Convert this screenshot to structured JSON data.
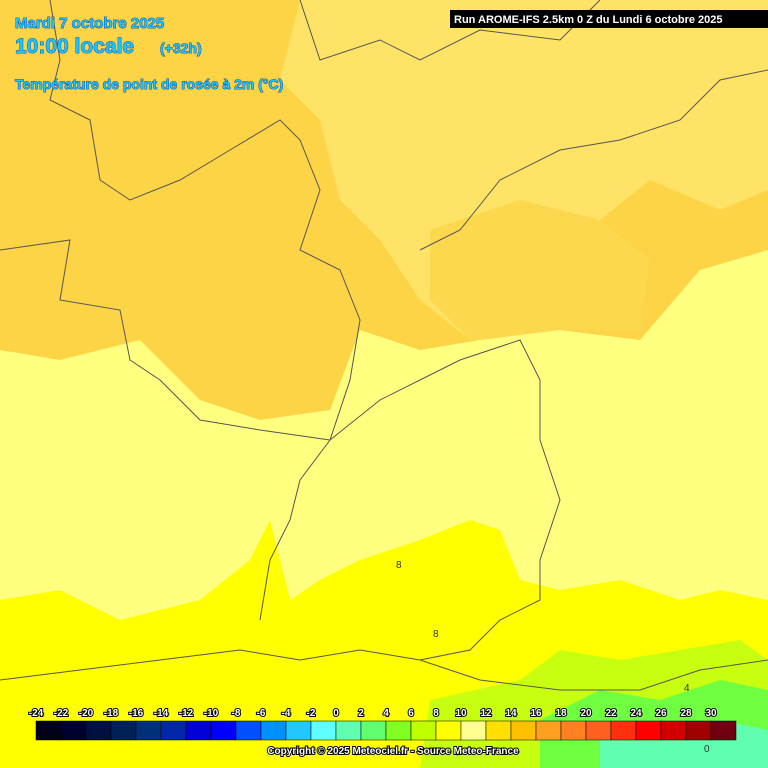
{
  "header": {
    "date": "Mardi 7 octobre 2025",
    "time": "10:00 locale",
    "lead": "(+32h)",
    "title": "Température de point de rosée à 2m (°C)"
  },
  "run": "Run AROME-IFS 2.5km 0 Z du Lundi 6 octobre 2025",
  "legend": {
    "ticks": [
      -24,
      -22,
      -20,
      -18,
      -16,
      -14,
      -12,
      -10,
      -8,
      -6,
      -4,
      -2,
      0,
      2,
      4,
      6,
      8,
      10,
      12,
      14,
      16,
      18,
      20,
      22,
      24,
      26,
      28,
      30
    ],
    "colors": [
      "#000018",
      "#00002e",
      "#001040",
      "#002058",
      "#00307a",
      "#0028a8",
      "#0000d8",
      "#0000ff",
      "#0050ff",
      "#0090ff",
      "#20c8ff",
      "#60ffff",
      "#60ffb0",
      "#60ff70",
      "#80ff20",
      "#c0ff00",
      "#ffff00",
      "#ffff90",
      "#ffe000",
      "#ffc000",
      "#ffa020",
      "#ff8020",
      "#ff6020",
      "#ff3010",
      "#ff0000",
      "#d00000",
      "#a00000",
      "#700010"
    ]
  },
  "contour_labels": [
    "8",
    "8",
    "4",
    "0"
  ],
  "copyright": "Copyright © 2025 Meteociel.fr - Source Meteo-France"
}
